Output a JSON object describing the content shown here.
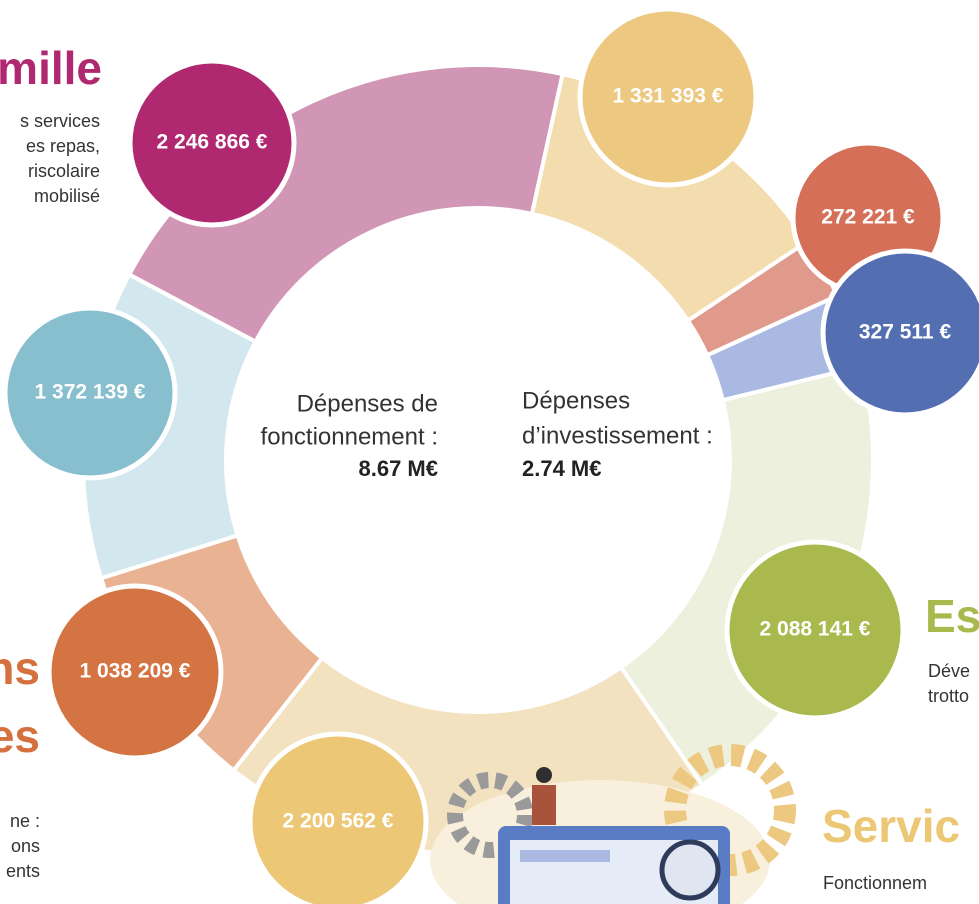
{
  "chart_data": {
    "type": "donut",
    "values": [
      2246866,
      1331393,
      272221,
      327511,
      2088141,
      2200562,
      1038209,
      1372139
    ],
    "value_labels": [
      "2 246 866 €",
      "1 331 393 €",
      "272 221 €",
      "327 511 €",
      "2 088 141 €",
      "2 200 562 €",
      "1 038 209 €",
      "1 372 139 €"
    ],
    "colors": [
      "#d195b5",
      "#f3dcae",
      "#e09a8b",
      "#a9b9e2",
      "#ecf0dd",
      "#f3e2bf",
      "#e8b293",
      "#d3e7ee"
    ],
    "label_colors": [
      "#b0286f",
      "#ecc880",
      "#d56f57",
      "#546fb1",
      "#a9b94d",
      "#ecc775",
      "#d47443",
      "#87bfcf"
    ],
    "center_left": [
      "Dépenses de",
      "fonctionnement :",
      "8.67 M€"
    ],
    "center_right": [
      "Dépenses",
      "d’investissement :",
      "2.74 M€"
    ],
    "annotations": [
      "mille",
      "s services",
      "es repas,",
      "riscolaire",
      "mobilisé",
      "ns",
      "es",
      "ne :",
      "ons",
      "ents",
      "Es",
      "Déve",
      "trotto",
      "Servic",
      "Fonctionnem"
    ]
  }
}
